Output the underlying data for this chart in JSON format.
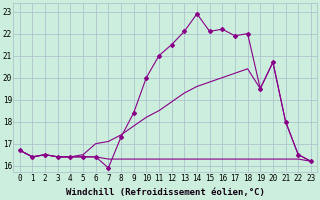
{
  "xlabel": "Windchill (Refroidissement éolien,°C)",
  "background_color": "#cceedd",
  "grid_color": "#aabbcc",
  "line_color": "#880088",
  "x": [
    0,
    1,
    2,
    3,
    4,
    5,
    6,
    7,
    8,
    9,
    10,
    11,
    12,
    13,
    14,
    15,
    16,
    17,
    18,
    19,
    20,
    21,
    22,
    23
  ],
  "line1": [
    16.7,
    16.4,
    16.5,
    16.4,
    16.4,
    16.4,
    16.4,
    15.9,
    17.3,
    18.4,
    20.0,
    21.0,
    21.5,
    22.1,
    22.9,
    22.1,
    22.2,
    21.9,
    22.0,
    19.5,
    20.7,
    18.0,
    16.5,
    16.2
  ],
  "line2": [
    16.7,
    16.4,
    16.5,
    16.4,
    16.4,
    16.4,
    16.4,
    16.3,
    16.3,
    16.3,
    16.3,
    16.3,
    16.3,
    16.3,
    16.3,
    16.3,
    16.3,
    16.3,
    16.3,
    16.3,
    16.3,
    16.3,
    16.3,
    16.2
  ],
  "line3": [
    16.7,
    16.4,
    16.5,
    16.4,
    16.4,
    16.5,
    17.0,
    17.1,
    17.4,
    17.8,
    18.2,
    18.5,
    18.9,
    19.3,
    19.6,
    19.8,
    20.0,
    20.2,
    20.4,
    19.5,
    20.7,
    18.0,
    16.5,
    16.2
  ],
  "ylim": [
    15.7,
    23.4
  ],
  "yticks": [
    16,
    17,
    18,
    19,
    20,
    21,
    22,
    23
  ],
  "xticks": [
    0,
    1,
    2,
    3,
    4,
    5,
    6,
    7,
    8,
    9,
    10,
    11,
    12,
    13,
    14,
    15,
    16,
    17,
    18,
    19,
    20,
    21,
    22,
    23
  ],
  "marker": "D",
  "markersize": 2.0,
  "linewidth": 0.8,
  "xlabel_fontsize": 6.5,
  "tick_fontsize": 5.5
}
